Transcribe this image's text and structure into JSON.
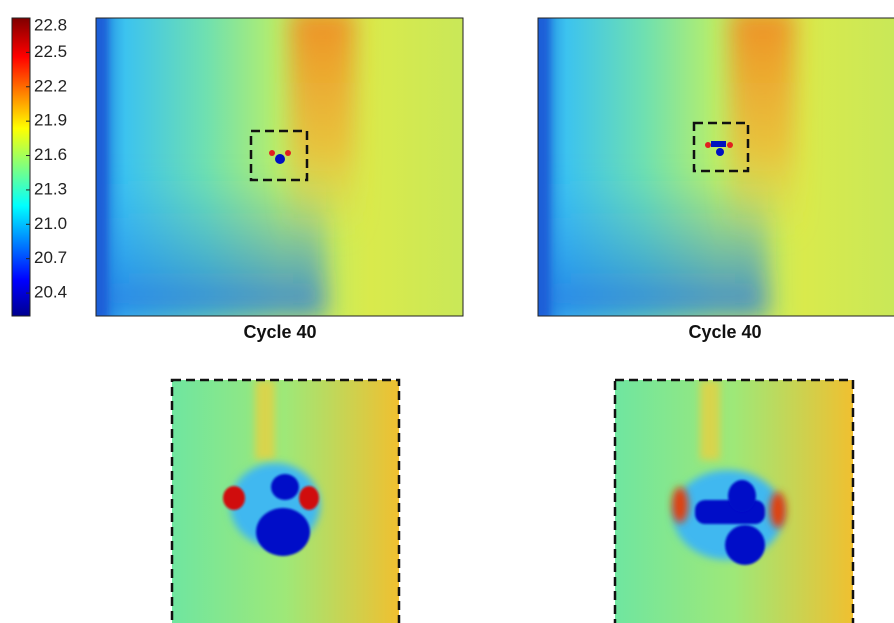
{
  "colorbar": {
    "lim": [
      20.2,
      22.8
    ],
    "ticks": [
      22.8,
      22.5,
      22.2,
      21.9,
      21.6,
      21.3,
      {
        "value": 21,
        "label": "21.0"
      },
      20.7,
      20.4
    ]
  },
  "panels": [
    {
      "caption": "Cycle 40"
    },
    {
      "caption": "Cycle 40"
    }
  ]
}
